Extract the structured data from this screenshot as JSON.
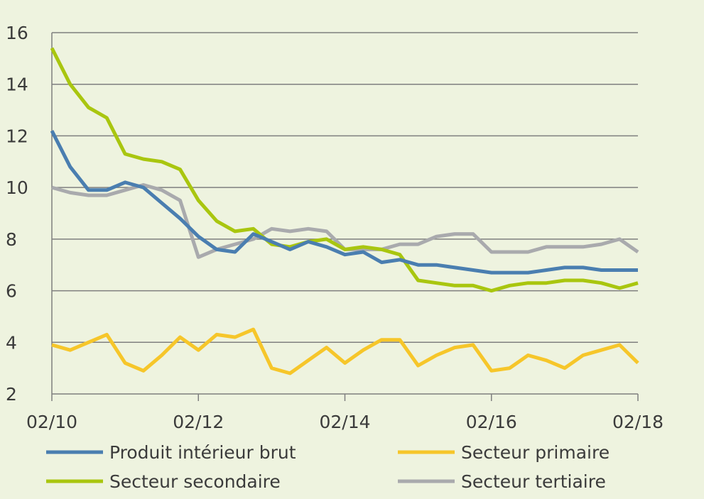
{
  "chart_data": {
    "type": "line",
    "title": "",
    "xlabel": "",
    "ylabel": "",
    "ylim": [
      2,
      16
    ],
    "y_ticks": [
      "2",
      "4",
      "6",
      "8",
      "10",
      "12",
      "14",
      "16"
    ],
    "x_tick_labels": [
      "02/10",
      "02/12",
      "02/14",
      "02/16",
      "02/18"
    ],
    "x": [
      "02/10",
      "05/10",
      "08/10",
      "11/10",
      "02/11",
      "05/11",
      "08/11",
      "11/11",
      "02/12",
      "05/12",
      "08/12",
      "11/12",
      "02/13",
      "05/13",
      "08/13",
      "11/13",
      "02/14",
      "05/14",
      "08/14",
      "11/14",
      "02/15",
      "05/15",
      "08/15",
      "11/15",
      "02/16",
      "05/16",
      "08/16",
      "11/16",
      "02/17",
      "05/17",
      "08/17",
      "11/17",
      "02/18"
    ],
    "grid": true,
    "legend_position": "bottom",
    "series": [
      {
        "name": "Produit intérieur brut",
        "color": "#4a7eb0",
        "values": [
          12.2,
          10.8,
          9.9,
          9.9,
          10.2,
          10.0,
          9.4,
          8.8,
          8.1,
          7.6,
          7.5,
          8.2,
          7.9,
          7.6,
          7.9,
          7.7,
          7.4,
          7.5,
          7.1,
          7.2,
          7.0,
          7.0,
          6.9,
          6.8,
          6.7,
          6.7,
          6.7,
          6.8,
          6.9,
          6.9,
          6.8,
          6.8,
          6.8
        ]
      },
      {
        "name": "Secteur primaire",
        "color": "#f6c62a",
        "values": [
          3.9,
          3.7,
          4.0,
          4.3,
          3.2,
          2.9,
          3.5,
          4.2,
          3.7,
          4.3,
          4.2,
          4.5,
          3.0,
          2.8,
          3.3,
          3.8,
          3.2,
          3.7,
          4.1,
          4.1,
          3.1,
          3.5,
          3.8,
          3.9,
          2.9,
          3.0,
          3.5,
          3.3,
          3.0,
          3.5,
          3.7,
          3.9,
          3.2
        ]
      },
      {
        "name": "Secteur secondaire",
        "color": "#a9c60f",
        "values": [
          15.4,
          14.0,
          13.1,
          12.7,
          11.3,
          11.1,
          11.0,
          10.7,
          9.5,
          8.7,
          8.3,
          8.4,
          7.8,
          7.7,
          7.9,
          8.0,
          7.6,
          7.7,
          7.6,
          7.4,
          6.4,
          6.3,
          6.2,
          6.2,
          6.0,
          6.2,
          6.3,
          6.3,
          6.4,
          6.4,
          6.3,
          6.1,
          6.3
        ]
      },
      {
        "name": "Secteur tertiaire",
        "color": "#a9aaad",
        "values": [
          10.0,
          9.8,
          9.7,
          9.7,
          9.9,
          10.1,
          9.9,
          9.5,
          7.3,
          7.6,
          7.8,
          8.0,
          8.4,
          8.3,
          8.4,
          8.3,
          7.6,
          7.6,
          7.6,
          7.8,
          7.8,
          8.1,
          8.2,
          8.2,
          7.5,
          7.5,
          7.5,
          7.7,
          7.7,
          7.7,
          7.8,
          8.0,
          7.5
        ]
      }
    ]
  }
}
